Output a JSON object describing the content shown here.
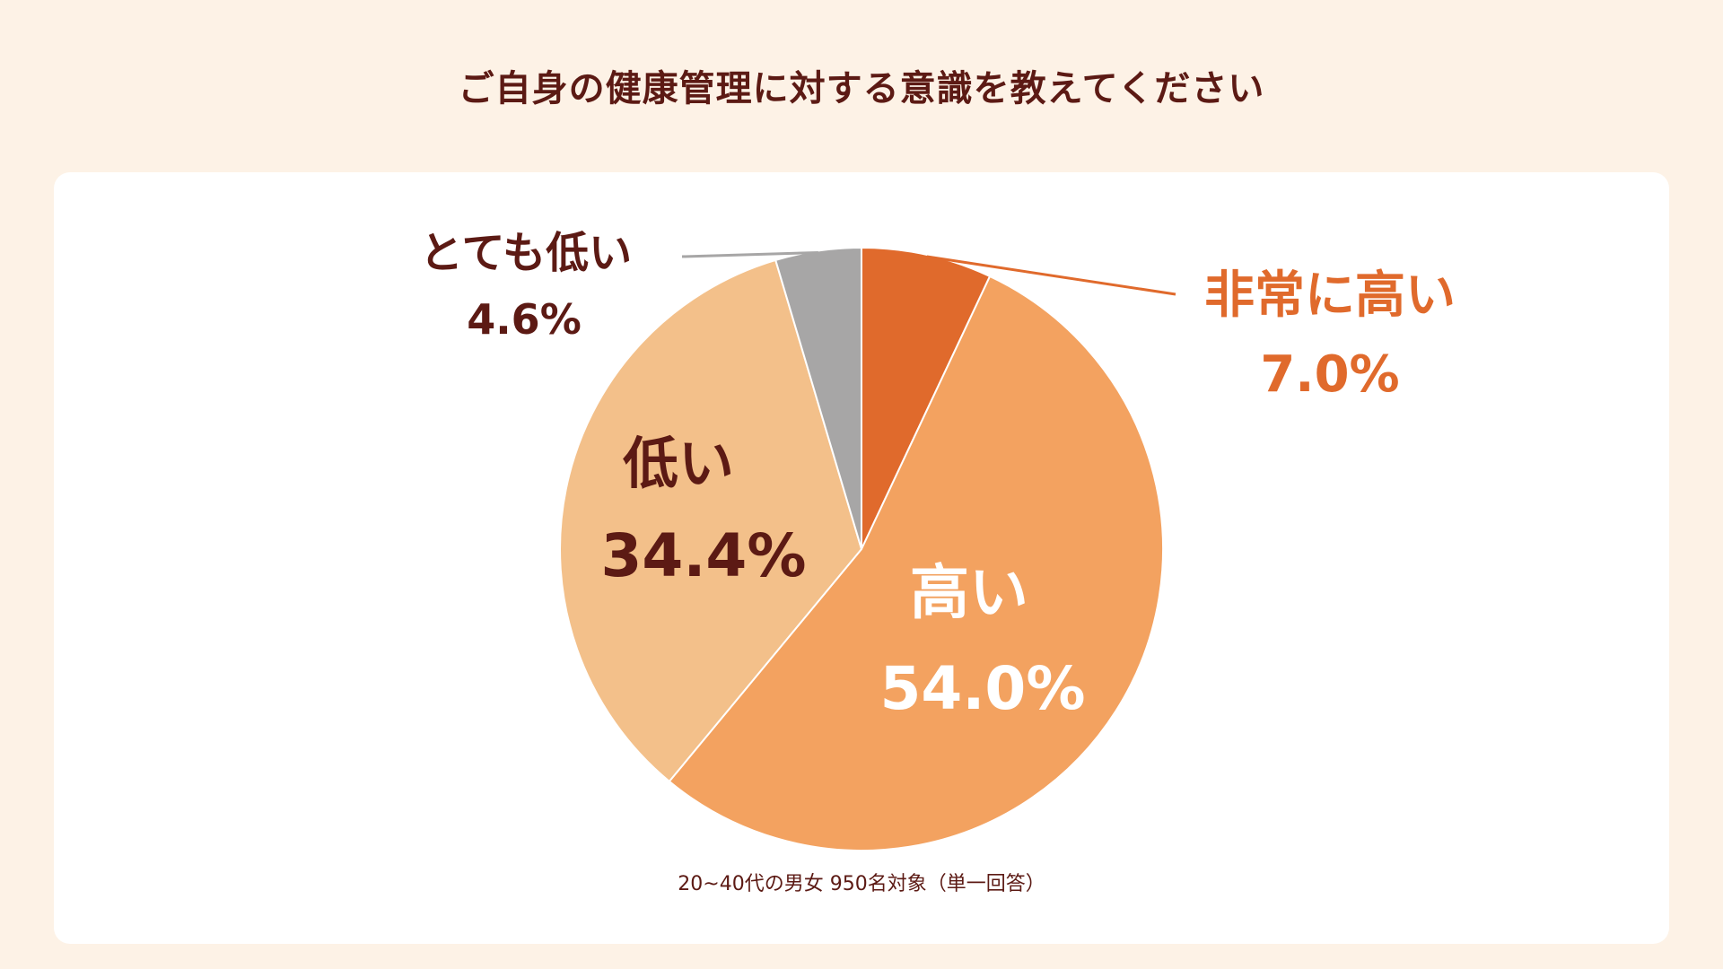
{
  "chart_data": {
    "type": "pie",
    "title": "ご自身の健康管理に対する意識を教えてください",
    "note": "20~40代の男女 950名対象（単一回答）",
    "start": "12 o'clock",
    "direction": "clockwise",
    "slices": [
      {
        "name": "非常に高い",
        "value": 7.0,
        "label": "7.0%",
        "color": "#e06a2c",
        "label_color": "#e06a2c",
        "label_position": "outside-right"
      },
      {
        "name": "高い",
        "value": 54.0,
        "label": "54.0%",
        "color": "#f3a260",
        "label_color": "#ffffff",
        "label_position": "inside"
      },
      {
        "name": "低い",
        "value": 34.4,
        "label": "34.4%",
        "color": "#f3c08a",
        "label_color": "#5c1a14",
        "label_position": "inside"
      },
      {
        "name": "とても低い",
        "value": 4.6,
        "label": "4.6%",
        "color": "#a7a6a6",
        "label_color": "#5c1a14",
        "label_position": "outside-left"
      }
    ]
  }
}
